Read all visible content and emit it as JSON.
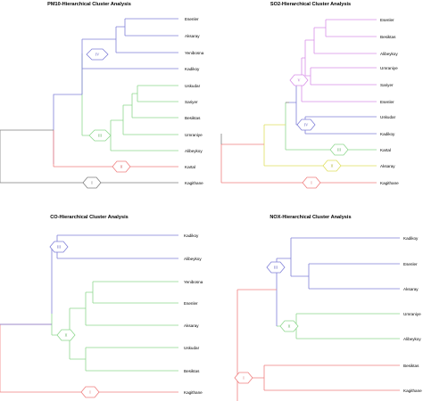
{
  "panels": [
    {
      "id": "pm10",
      "title": "PM10-Hierarchical Cluster Analysis",
      "leaves": [
        "Esenler",
        "Aksaray",
        "Yenibosna",
        "Kadikoy",
        "Uskudar",
        "Sariyer",
        "Besiktas",
        "Umraniye",
        "Alibeykoy",
        "Kartal",
        "Kagithane"
      ],
      "clusters": [
        {
          "label": "IV",
          "color": "#8080d8",
          "members": [
            "Esenler",
            "Aksaray",
            "Yenibosna",
            "Kadikoy"
          ]
        },
        {
          "label": "III",
          "color": "#8fd88f",
          "members": [
            "Uskudar",
            "Sariyer",
            "Besiktas",
            "Umraniye",
            "Alibeykoy"
          ]
        },
        {
          "label": "II",
          "color": "#f08080",
          "members": [
            "Kartal"
          ]
        },
        {
          "label": "I",
          "color": "#808080",
          "members": [
            "Kagithane"
          ]
        }
      ]
    },
    {
      "id": "so2",
      "title": "SO2-Hierarchical Cluster Analysis",
      "leaves": [
        "Esenler",
        "Besiktas",
        "Alibeykoy",
        "Umraniye",
        "Sariyer",
        "Esenler",
        "Uskudar",
        "Kadikoy",
        "Kartal",
        "Aksaray",
        "Kagithane"
      ],
      "clusters": [
        {
          "label": "V",
          "color": "#d890e8",
          "members": [
            "Esenler",
            "Besiktas",
            "Alibeykoy",
            "Umraniye",
            "Sariyer",
            "Esenler"
          ]
        },
        {
          "label": "IV",
          "color": "#8080d8",
          "members": [
            "Uskudar",
            "Kadikoy"
          ]
        },
        {
          "label": "III",
          "color": "#8fd88f",
          "members": [
            "Kartal"
          ]
        },
        {
          "label": "II",
          "color": "#e0e060",
          "members": [
            "Aksaray"
          ]
        },
        {
          "label": "I",
          "color": "#f08080",
          "members": [
            "Kagithane"
          ]
        }
      ]
    },
    {
      "id": "co",
      "title": "CO-Hierarchical Cluster Analysis",
      "leaves": [
        "Kadikoy",
        "Alibeykoy",
        "Yenibosna",
        "Esenler",
        "Aksaray",
        "Uskudar",
        "Besiktas",
        "Kagithane"
      ],
      "clusters": [
        {
          "label": "III",
          "color": "#8080d8",
          "members": [
            "Kadikoy",
            "Alibeykoy"
          ]
        },
        {
          "label": "II",
          "color": "#8fd88f",
          "members": [
            "Yenibosna",
            "Esenler",
            "Aksaray",
            "Uskudar",
            "Besiktas"
          ]
        },
        {
          "label": "I",
          "color": "#f08080",
          "members": [
            "Kagithane"
          ]
        }
      ]
    },
    {
      "id": "nox",
      "title": "NOX-Hierarchical Cluster Analysis",
      "leaves": [
        "Kadikoy",
        "Esenler",
        "Aksaray",
        "Umraniye",
        "Alibeykoy",
        "Besiktas",
        "Kagithane"
      ],
      "clusters": [
        {
          "label": "III",
          "color": "#8080d8",
          "members": [
            "Kadikoy",
            "Esenler",
            "Aksaray"
          ]
        },
        {
          "label": "II",
          "color": "#8fd88f",
          "members": [
            "Umraniye",
            "Alibeykoy"
          ]
        },
        {
          "label": "I",
          "color": "#f08080",
          "members": [
            "Besiktas",
            "Kagithane"
          ]
        }
      ]
    }
  ]
}
